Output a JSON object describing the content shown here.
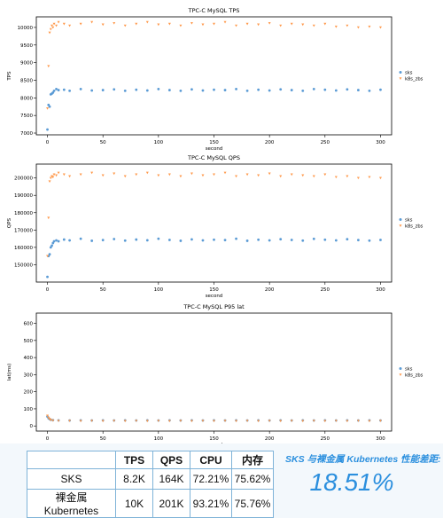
{
  "chart_data": [
    {
      "type": "scatter",
      "title": "TPC-C MySQL TPS",
      "xlabel": "second",
      "ylabel": "TPS",
      "xlim": [
        -10,
        310
      ],
      "ylim": [
        6950,
        10300
      ],
      "xticks": [
        0,
        50,
        100,
        150,
        200,
        250,
        300
      ],
      "yticks": [
        7000,
        7500,
        8000,
        8500,
        9000,
        9500,
        10000
      ],
      "legend": "right",
      "series": [
        {
          "name": "sks",
          "marker": "dot",
          "color": "#5b9bd5",
          "x": [
            0,
            1,
            2,
            3,
            4,
            5,
            6,
            8,
            10,
            15,
            20,
            30,
            40,
            50,
            60,
            70,
            80,
            90,
            100,
            110,
            120,
            130,
            140,
            150,
            160,
            170,
            180,
            190,
            200,
            210,
            220,
            230,
            240,
            250,
            260,
            270,
            280,
            290,
            300
          ],
          "y": [
            7100,
            7800,
            7750,
            8100,
            8120,
            8150,
            8200,
            8250,
            8220,
            8230,
            8200,
            8250,
            8210,
            8220,
            8240,
            8200,
            8230,
            8210,
            8250,
            8220,
            8200,
            8240,
            8210,
            8230,
            8220,
            8250,
            8200,
            8230,
            8210,
            8240,
            8220,
            8200,
            8250,
            8230,
            8210,
            8240,
            8220,
            8200,
            8230
          ]
        },
        {
          "name": "k8s_zbs",
          "marker": "triangle",
          "color": "#ff9a4d",
          "x": [
            0,
            1,
            2,
            3,
            4,
            5,
            6,
            8,
            10,
            15,
            20,
            30,
            40,
            50,
            60,
            70,
            80,
            90,
            100,
            110,
            120,
            130,
            140,
            150,
            160,
            170,
            180,
            190,
            200,
            210,
            220,
            230,
            240,
            250,
            260,
            270,
            280,
            290,
            300
          ],
          "y": [
            7700,
            8900,
            9850,
            9950,
            10050,
            10000,
            10100,
            10050,
            10150,
            10100,
            10050,
            10100,
            10150,
            10080,
            10120,
            10050,
            10100,
            10150,
            10080,
            10100,
            10050,
            10120,
            10080,
            10100,
            10150,
            10050,
            10100,
            10080,
            10120,
            10050,
            10100,
            10080,
            10050,
            10100,
            10020,
            10050,
            10000,
            10020,
            10000
          ]
        }
      ]
    },
    {
      "type": "scatter",
      "title": "TPC-C MySQL QPS",
      "xlabel": "second",
      "ylabel": "QPS",
      "xlim": [
        -10,
        310
      ],
      "ylim": [
        140000,
        208000
      ],
      "xticks": [
        0,
        50,
        100,
        150,
        200,
        250,
        300
      ],
      "yticks": [
        150000,
        160000,
        170000,
        180000,
        190000,
        200000
      ],
      "legend": "right",
      "series": [
        {
          "name": "sks",
          "marker": "dot",
          "color": "#5b9bd5",
          "x": [
            0,
            1,
            2,
            3,
            4,
            5,
            6,
            8,
            10,
            15,
            20,
            30,
            40,
            50,
            60,
            70,
            80,
            90,
            100,
            110,
            120,
            130,
            140,
            150,
            160,
            170,
            180,
            190,
            200,
            210,
            220,
            230,
            240,
            250,
            260,
            270,
            280,
            290,
            300
          ],
          "y": [
            143000,
            155000,
            156000,
            160000,
            161000,
            162500,
            163500,
            164000,
            163500,
            164500,
            164000,
            165000,
            163800,
            164200,
            164800,
            163900,
            164500,
            164100,
            165000,
            164300,
            163800,
            164600,
            164000,
            164400,
            164200,
            165000,
            163800,
            164400,
            164000,
            164700,
            164300,
            163900,
            164900,
            164400,
            164000,
            164700,
            164200,
            163900,
            164300
          ]
        },
        {
          "name": "k8s_zbs",
          "marker": "triangle",
          "color": "#ff9a4d",
          "x": [
            0,
            1,
            2,
            3,
            4,
            5,
            6,
            8,
            10,
            15,
            20,
            30,
            40,
            50,
            60,
            70,
            80,
            90,
            100,
            110,
            120,
            130,
            140,
            150,
            160,
            170,
            180,
            190,
            200,
            210,
            220,
            230,
            240,
            250,
            260,
            270,
            280,
            290,
            300
          ],
          "y": [
            155000,
            177000,
            198000,
            200000,
            201000,
            200500,
            202000,
            201500,
            203000,
            202000,
            201000,
            202000,
            203000,
            201500,
            202500,
            201000,
            202000,
            203000,
            201500,
            202000,
            201000,
            202500,
            201500,
            202000,
            203000,
            201000,
            202000,
            201500,
            202500,
            201000,
            202000,
            201500,
            201000,
            202000,
            200500,
            201000,
            200000,
            200500,
            200000
          ]
        }
      ]
    },
    {
      "type": "scatter",
      "title": "TPC-C MySQL P95 lat",
      "xlabel": "second",
      "ylabel": "lat(ms)",
      "xlim": [
        -10,
        310
      ],
      "ylim": [
        -30,
        660
      ],
      "xticks": [
        0,
        50,
        100,
        150,
        200,
        250,
        300
      ],
      "yticks": [
        0,
        100,
        200,
        300,
        400,
        500,
        600
      ],
      "legend": "right",
      "series": [
        {
          "name": "sks",
          "marker": "dot",
          "color": "#5b9bd5",
          "x": [
            0,
            1,
            2,
            3,
            5,
            10,
            20,
            30,
            40,
            50,
            60,
            70,
            80,
            90,
            100,
            110,
            120,
            130,
            140,
            150,
            160,
            170,
            180,
            190,
            200,
            210,
            220,
            230,
            240,
            250,
            260,
            270,
            280,
            290,
            300
          ],
          "y": [
            55,
            45,
            40,
            36,
            34,
            33,
            32,
            33,
            32,
            33,
            32,
            33,
            32,
            33,
            32,
            33,
            32,
            33,
            32,
            33,
            32,
            33,
            32,
            33,
            32,
            33,
            32,
            33,
            32,
            33,
            32,
            33,
            32,
            33,
            32
          ]
        },
        {
          "name": "k8s_zbs",
          "marker": "triangle",
          "color": "#ff9a4d",
          "x": [
            0,
            1,
            2,
            3,
            5,
            10,
            20,
            30,
            40,
            50,
            60,
            70,
            80,
            90,
            100,
            110,
            120,
            130,
            140,
            150,
            160,
            170,
            180,
            190,
            200,
            210,
            220,
            230,
            240,
            250,
            260,
            270,
            280,
            290,
            300
          ],
          "y": [
            60,
            48,
            40,
            35,
            32,
            30,
            30,
            29,
            30,
            29,
            30,
            29,
            30,
            29,
            30,
            29,
            30,
            29,
            30,
            29,
            30,
            29,
            30,
            29,
            30,
            29,
            30,
            29,
            30,
            29,
            30,
            29,
            30,
            29,
            30
          ]
        }
      ]
    }
  ],
  "table": {
    "headers": [
      "",
      "TPS",
      "QPS",
      "CPU",
      "内存"
    ],
    "rows": [
      [
        "SKS",
        "8.2K",
        "164K",
        "72.21%",
        "75.62%"
      ],
      [
        "裸金属 Kubernetes",
        "10K",
        "201K",
        "93.21%",
        "75.76%"
      ]
    ]
  },
  "summary": {
    "label": "SKS 与裸金属 Kubernetes 性能差距:",
    "value": "18.51%"
  }
}
